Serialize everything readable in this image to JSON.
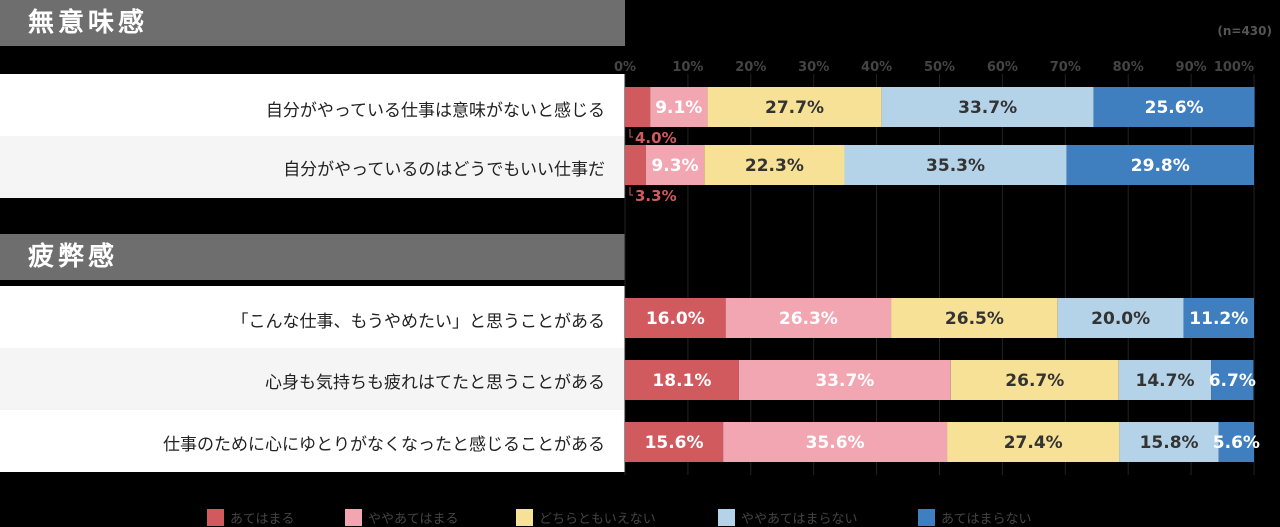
{
  "note": "(n=430)",
  "chart_data": {
    "type": "bar",
    "orientation": "horizontal-stacked-100",
    "xlim": [
      0,
      100
    ],
    "x_ticks": [
      "0%",
      "10%",
      "20%",
      "30%",
      "40%",
      "50%",
      "60%",
      "70%",
      "80%",
      "90%",
      "100%"
    ],
    "legend": [
      {
        "name": "あてはまる",
        "color": "#d15a5f"
      },
      {
        "name": "ややあてはまる",
        "color": "#f2a6b2"
      },
      {
        "name": "どちらともいえない",
        "color": "#f7e196"
      },
      {
        "name": "ややあてはまらない",
        "color": "#b4d3e8"
      },
      {
        "name": "あてはまらない",
        "color": "#3f7ebf"
      }
    ],
    "groups": [
      {
        "title": "無意味感",
        "rows": [
          {
            "label": "自分がやっている仕事は意味がないと感じる",
            "values": [
              4.0,
              9.1,
              27.7,
              33.7,
              25.6
            ]
          },
          {
            "label": "自分がやっているのはどうでもいい仕事だ",
            "values": [
              3.3,
              9.3,
              22.3,
              35.3,
              29.8
            ]
          }
        ]
      },
      {
        "title": "疲弊感",
        "rows": [
          {
            "label": "「こんな仕事、もうやめたい」と思うことがある",
            "values": [
              16.0,
              26.3,
              26.5,
              20.0,
              11.2
            ]
          },
          {
            "label": "心身も気持ちも疲れはてたと思うことがある",
            "values": [
              18.1,
              33.7,
              26.7,
              14.7,
              6.7
            ]
          },
          {
            "label": "仕事のために心にゆとりがなくなったと感じることがある",
            "values": [
              15.6,
              35.6,
              27.4,
              15.8,
              5.6
            ]
          }
        ]
      }
    ]
  }
}
